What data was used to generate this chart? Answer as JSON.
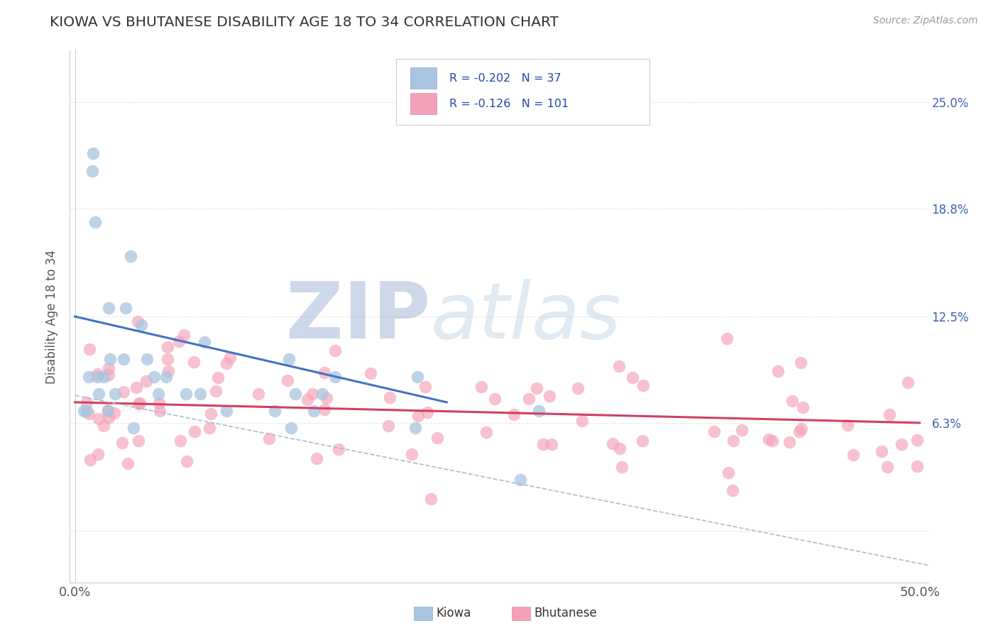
{
  "title": "KIOWA VS BHUTANESE DISABILITY AGE 18 TO 34 CORRELATION CHART",
  "source": "Source: ZipAtlas.com",
  "ylabel": "Disability Age 18 to 34",
  "kiowa_R": "-0.202",
  "kiowa_N": "37",
  "bhutanese_R": "-0.126",
  "bhutanese_N": "101",
  "kiowa_color": "#a8c4e0",
  "bhutanese_color": "#f4a0b8",
  "kiowa_line_color": "#4472c4",
  "bhutanese_line_color": "#d04060",
  "dashed_line_color": "#aabbcc",
  "watermark_text": "ZIPatlas",
  "watermark_color": "#c8d8ec",
  "background_color": "#ffffff",
  "grid_color": "#e8e8e8",
  "right_tick_color": "#4060b0",
  "legend_label_color": "#2244aa",
  "title_color": "#333333",
  "source_color": "#999999",
  "xlim": [
    -0.003,
    0.505
  ],
  "ylim": [
    -0.03,
    0.28
  ],
  "ytick_vals": [
    0.0,
    0.063,
    0.125,
    0.188,
    0.25
  ],
  "right_ytick_vals": [
    0.063,
    0.125,
    0.188,
    0.25
  ],
  "right_ytick_labels": [
    "6.3%",
    "12.5%",
    "18.8%",
    "25.0%"
  ],
  "kiowa_line_x0": 0.0,
  "kiowa_line_y0": 0.125,
  "kiowa_line_x1": 0.22,
  "kiowa_line_y1": 0.075,
  "bhutanese_line_x0": 0.0,
  "bhutanese_line_y0": 0.075,
  "bhutanese_line_x1": 0.5,
  "bhutanese_line_y1": 0.063,
  "dashed_line_x0": 0.0,
  "dashed_line_y0": 0.079,
  "dashed_line_x1": 0.505,
  "dashed_line_y1": -0.02,
  "kiowa_seed": 101,
  "bhutanese_seed": 202
}
